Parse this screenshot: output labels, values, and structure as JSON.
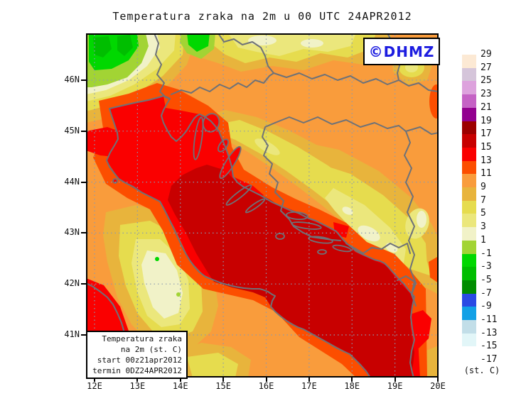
{
  "title": "Temperatura zraka na 2m u 00 UTC 24APR2012",
  "logo": {
    "text": "©DHMZ",
    "color": "#1c1ce0"
  },
  "info_box": {
    "lines": [
      "Temperatura zraka",
      "na 2m (st. C)",
      "start 00z21apr2012",
      "termin 0DZ24APR2012"
    ]
  },
  "axes": {
    "lat_labels": [
      "46N",
      "45N",
      "44N",
      "43N",
      "42N",
      "41N"
    ],
    "lon_labels": [
      "12E",
      "13E",
      "14E",
      "15E",
      "16E",
      "17E",
      "18E",
      "19E",
      "20E"
    ]
  },
  "colorbar": {
    "unit": "(st. C)",
    "values": [
      "29",
      "27",
      "25",
      "23",
      "21",
      "19",
      "17",
      "15",
      "13",
      "11",
      "9",
      "7",
      "5",
      "3",
      "1",
      "-1",
      "-3",
      "-5",
      "-7",
      "-9",
      "-11",
      "-13",
      "-15",
      "-17"
    ],
    "colors": [
      "#fce9d4",
      "#d5c5da",
      "#dda2dd",
      "#c562c5",
      "#92008f",
      "#9c0000",
      "#c80000",
      "#fa0000",
      "#fc4e00",
      "#f99c3c",
      "#e8b43c",
      "#e6dc4e",
      "#ebe77c",
      "#f1f2c8",
      "#a2d434",
      "#00d800",
      "#00be00",
      "#008c00",
      "#2a4ae4",
      "#12a0e6",
      "#c2dee8",
      "#e2f6f8",
      "#ffffff"
    ]
  },
  "palette": {
    "c17_19": "#9c0000",
    "c15_17": "#c80000",
    "c13_15": "#fa0000",
    "c11_13": "#fc4e00",
    "c9_11": "#f99c3c",
    "c7_9": "#e8b43c",
    "c5_7": "#e6dc4e",
    "c3_5": "#ebe77c",
    "c1_3": "#f1f2c8",
    "cm1_1": "#a2d434",
    "cm3_m1": "#00d800",
    "cm5_m3": "#00be00",
    "coast": "#6e7278",
    "grid": "#8a9ab0",
    "frame": "#000000"
  }
}
